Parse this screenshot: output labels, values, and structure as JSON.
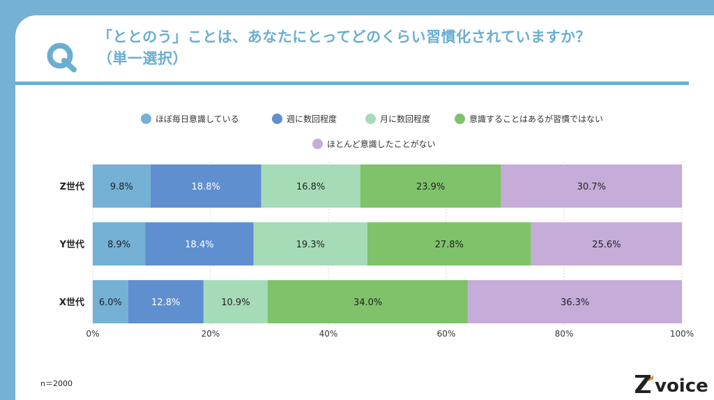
{
  "header": {
    "title_line1": "「ととのう」ことは、あなたにとってどのくらい習慣化されていますか？",
    "title_line2": "（単一選択）"
  },
  "note": "n＝2000",
  "logo_text": "voice",
  "logo_mark": "Z",
  "colors": {
    "accent": "#6aaed0",
    "background": "#75b1d4",
    "series": [
      "#74b1d5",
      "#5f8fcf",
      "#a6dbb8",
      "#7fc26a",
      "#c6acd9"
    ]
  },
  "chart_data": {
    "type": "bar",
    "orientation": "horizontal",
    "stacked": true,
    "categories": [
      "Z世代",
      "Y世代",
      "X世代"
    ],
    "series": [
      {
        "name": "ほぼ毎日意識している",
        "values": [
          9.8,
          8.9,
          6.0
        ]
      },
      {
        "name": "週に数回程度",
        "values": [
          18.8,
          18.4,
          12.8
        ]
      },
      {
        "name": "月に数回程度",
        "values": [
          16.8,
          19.3,
          10.9
        ]
      },
      {
        "name": "意識することはあるが習慣ではない",
        "values": [
          23.9,
          27.8,
          34.0
        ]
      },
      {
        "name": "ほとんど意識したことがない",
        "values": [
          30.7,
          25.6,
          36.3
        ]
      }
    ],
    "xlim": [
      0,
      100
    ],
    "xticks": [
      "0%",
      "20%",
      "40%",
      "60%",
      "80%",
      "100%"
    ],
    "value_suffix": "%",
    "grid": true,
    "legend_position": "top"
  }
}
